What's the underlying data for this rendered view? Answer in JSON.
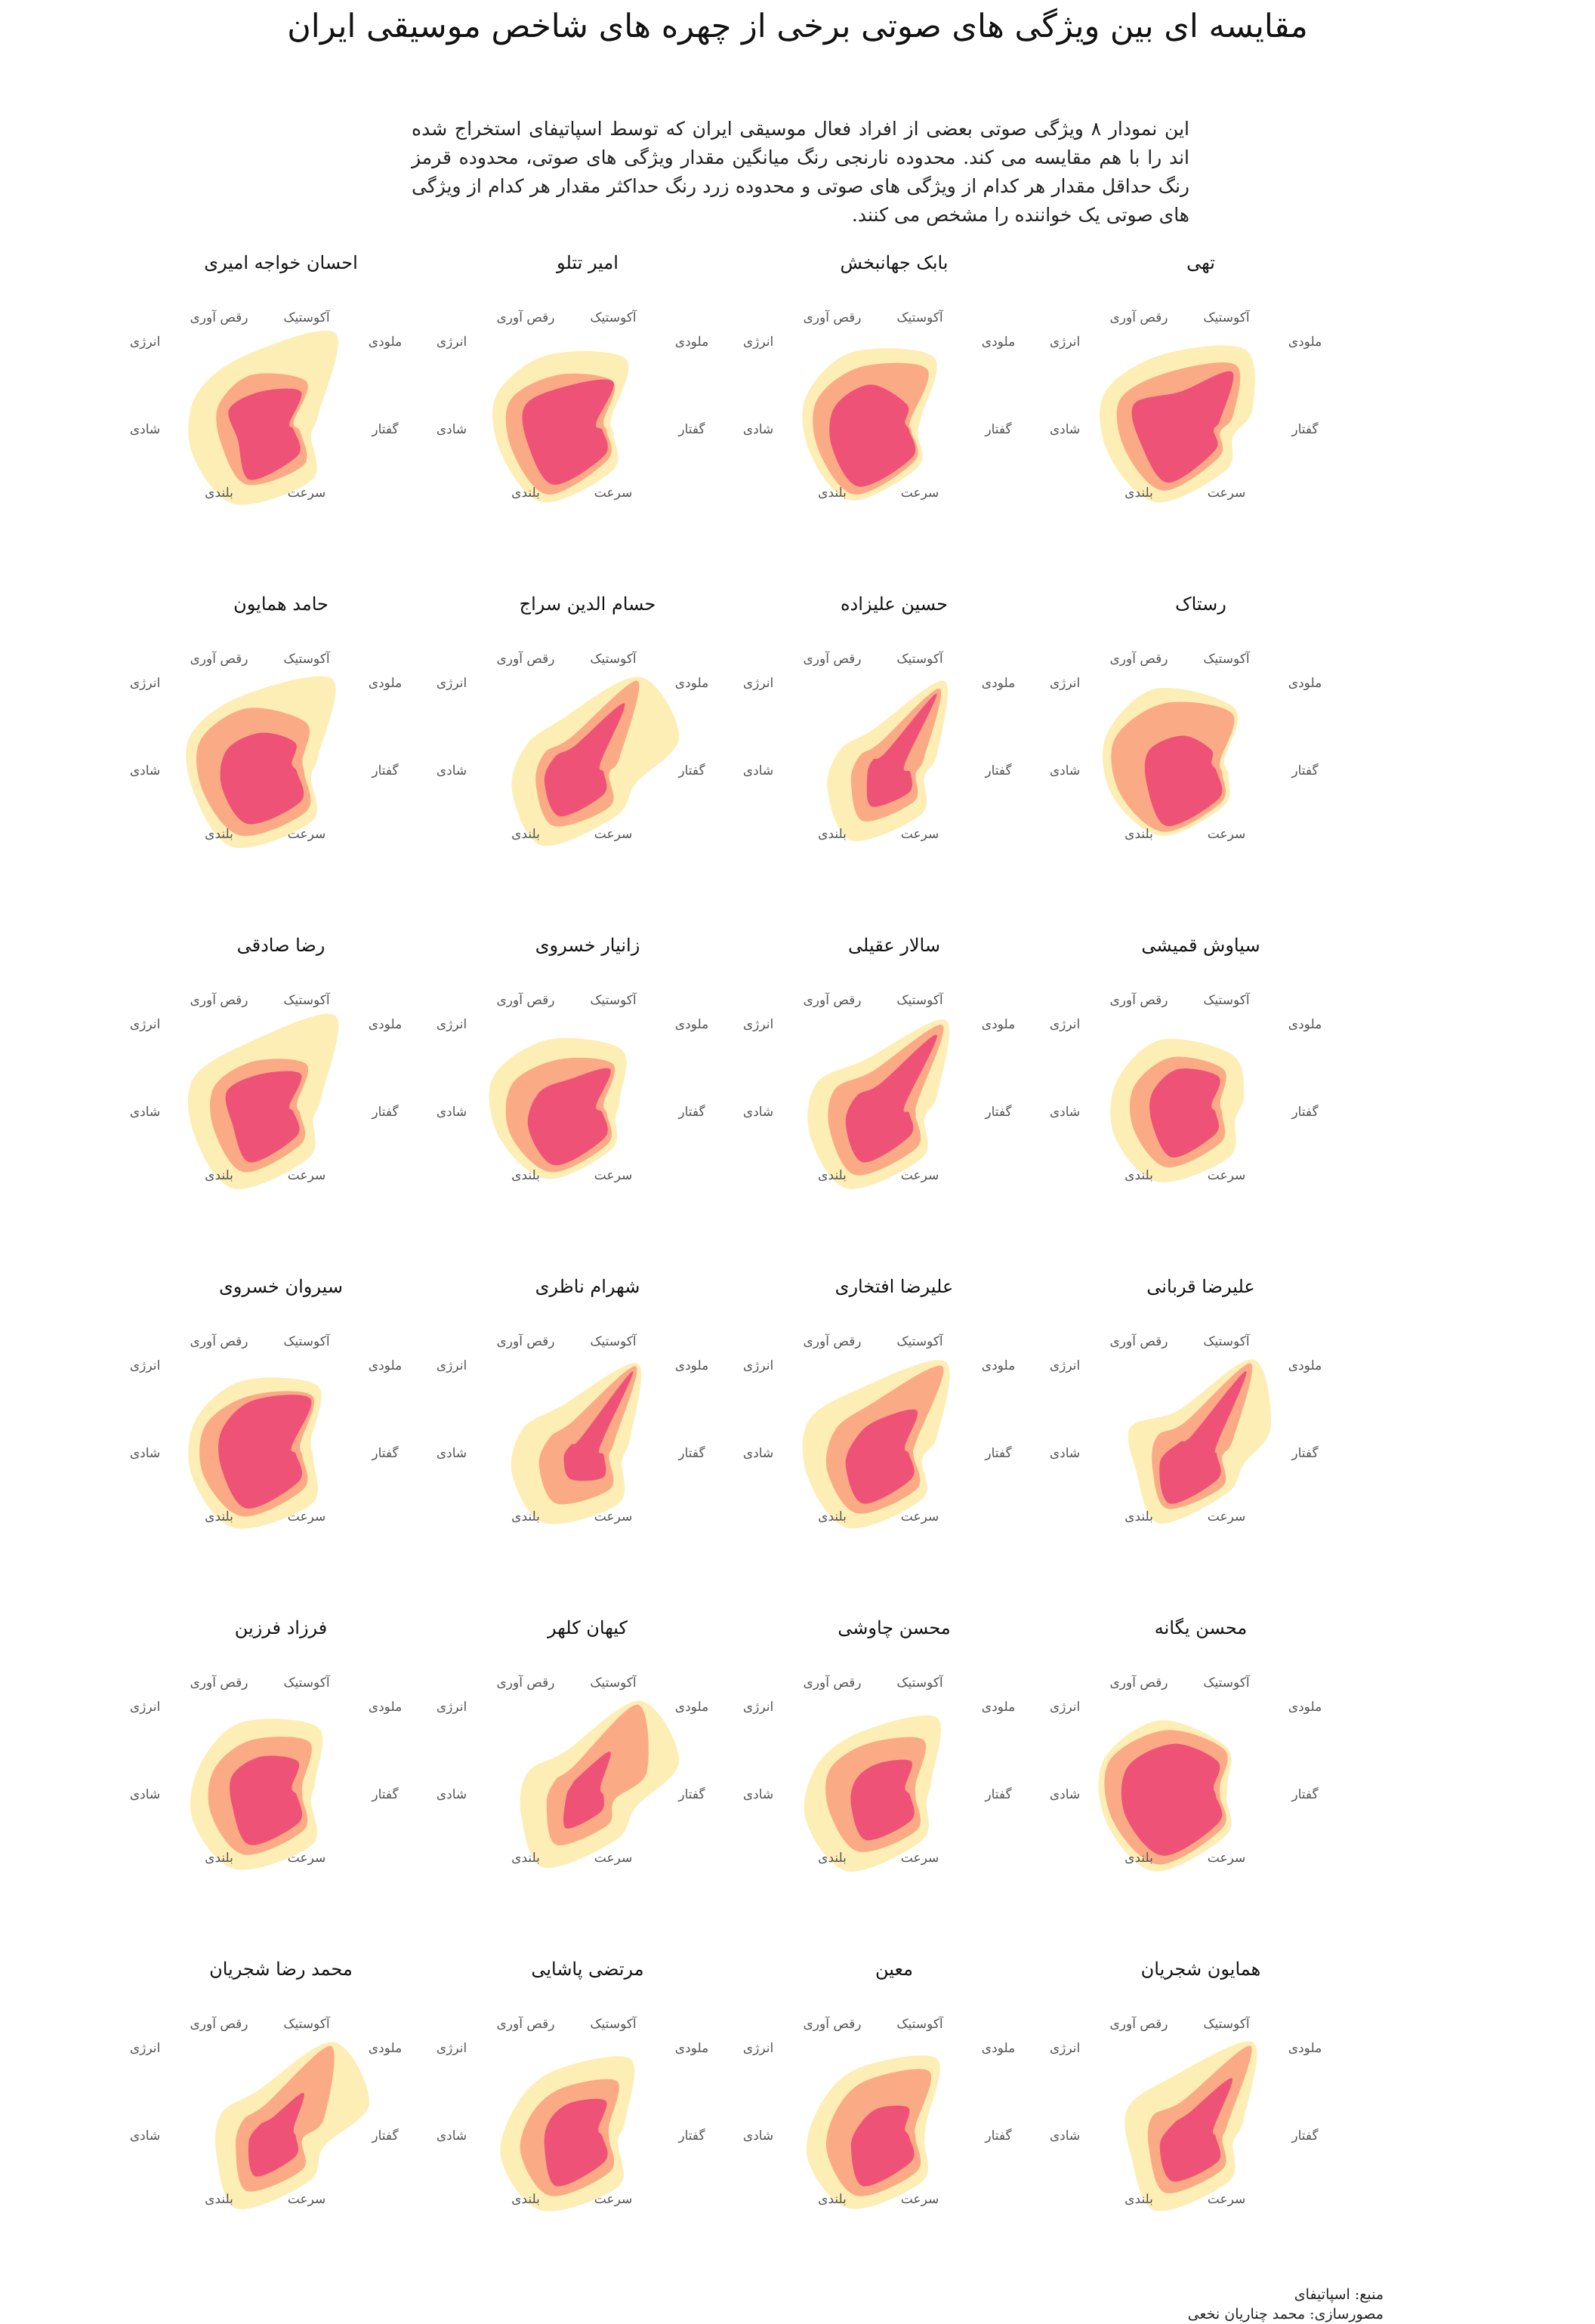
{
  "title": "مقایسه ای بین ویژگی های صوتی برخی از  چهره های شاخص موسیقی ایران",
  "description": "این نمودار ۸ ویژگی صوتی بعضی از افراد فعال موسیقی ایران که توسط اسپاتیفای استخراج شده اند را با هم مقایسه می کند. محدوده نارنجی رنگ میانگین مقدار ویژگی های صوتی، محدوده قرمز رنگ حداقل مقدار هر کدام از ویژگی های صوتی و محدوده زرد رنگ حداکثر مقدار هر کدام از ویژگی های صوتی یک خواننده را مشخص می کنند.",
  "footer": {
    "source": "منبع: اسپاتیفای",
    "credit": "مصورسازی: محمد چناریان نخعی"
  },
  "colors": {
    "max": "#fdeeb6",
    "mean": "#fbaa86",
    "min": "#ee5276"
  },
  "chart_data": {
    "type": "radar",
    "axes": [
      "آکوستیک",
      "ملودی",
      "گفتار",
      "سرعت",
      "بلندی",
      "شادی",
      "انرژی",
      "رقص آوری"
    ],
    "layers": [
      "max",
      "mean",
      "min"
    ],
    "range": [
      0,
      1
    ],
    "artists": [
      {
        "name": "تهی",
        "max": [
          0.78,
          0.48,
          0.3,
          0.45,
          0.78,
          0.85,
          0.9,
          0.72
        ],
        "mean": [
          0.62,
          0.3,
          0.18,
          0.32,
          0.66,
          0.7,
          0.75,
          0.55
        ],
        "min": [
          0.55,
          0.18,
          0.12,
          0.25,
          0.58,
          0.55,
          0.62,
          0.35
        ]
      },
      {
        "name": "بابک جهانبخش",
        "max": [
          0.7,
          0.25,
          0.22,
          0.42,
          0.76,
          0.78,
          0.82,
          0.75
        ],
        "mean": [
          0.58,
          0.15,
          0.16,
          0.36,
          0.7,
          0.7,
          0.72,
          0.6
        ],
        "min": [
          0.22,
          0.1,
          0.14,
          0.32,
          0.62,
          0.58,
          0.55,
          0.42
        ]
      },
      {
        "name": "امیر تتلو",
        "max": [
          0.68,
          0.22,
          0.24,
          0.45,
          0.78,
          0.8,
          0.85,
          0.72
        ],
        "mean": [
          0.45,
          0.15,
          0.18,
          0.35,
          0.7,
          0.7,
          0.72,
          0.52
        ],
        "min": [
          0.45,
          0.08,
          0.14,
          0.3,
          0.6,
          0.55,
          0.58,
          0.4
        ]
      },
      {
        "name": "احسان خواجه امیری",
        "max": [
          0.95,
          0.35,
          0.28,
          0.55,
          0.8,
          0.82,
          0.8,
          0.7
        ],
        "mean": [
          0.45,
          0.12,
          0.18,
          0.4,
          0.6,
          0.55,
          0.58,
          0.52
        ],
        "min": [
          0.35,
          0.08,
          0.12,
          0.3,
          0.55,
          0.4,
          0.48,
          0.35
        ]
      },
      {
        "name": "رستاک",
        "max": [
          0.6,
          0.22,
          0.26,
          0.4,
          0.7,
          0.82,
          0.88,
          0.8
        ],
        "mean": [
          0.55,
          0.18,
          0.2,
          0.36,
          0.66,
          0.75,
          0.8,
          0.65
        ],
        "min": [
          0.18,
          0.1,
          0.15,
          0.32,
          0.6,
          0.5,
          0.48,
          0.32
        ]
      },
      {
        "name": "حسین علیزاده",
        "max": [
          0.88,
          0.4,
          0.28,
          0.48,
          0.75,
          0.62,
          0.5,
          0.38
        ],
        "mean": [
          0.8,
          0.28,
          0.2,
          0.35,
          0.55,
          0.4,
          0.32,
          0.25
        ],
        "min": [
          0.75,
          0.1,
          0.15,
          0.26,
          0.4,
          0.25,
          0.2,
          0.15
        ]
      },
      {
        "name": "حسام الدین سراج",
        "max": [
          0.92,
          0.85,
          0.45,
          0.5,
          0.8,
          0.7,
          0.58,
          0.48
        ],
        "mean": [
          0.88,
          0.3,
          0.2,
          0.4,
          0.6,
          0.48,
          0.4,
          0.3
        ],
        "min": [
          0.65,
          0.12,
          0.15,
          0.28,
          0.5,
          0.4,
          0.3,
          0.22
        ]
      },
      {
        "name": "حامد همایون",
        "max": [
          0.9,
          0.35,
          0.28,
          0.55,
          0.82,
          0.8,
          0.85,
          0.72
        ],
        "mean": [
          0.45,
          0.2,
          0.22,
          0.45,
          0.7,
          0.72,
          0.75,
          0.6
        ],
        "min": [
          0.25,
          0.1,
          0.15,
          0.35,
          0.58,
          0.55,
          0.5,
          0.35
        ]
      },
      {
        "name": "سیاوش قمیشی",
        "max": [
          0.55,
          0.4,
          0.32,
          0.5,
          0.75,
          0.8,
          0.78,
          0.7
        ],
        "mean": [
          0.4,
          0.18,
          0.2,
          0.35,
          0.6,
          0.62,
          0.62,
          0.52
        ],
        "min": [
          0.32,
          0.1,
          0.14,
          0.26,
          0.5,
          0.45,
          0.45,
          0.4
        ]
      },
      {
        "name": "سالار عقیلی",
        "max": [
          0.9,
          0.4,
          0.28,
          0.5,
          0.82,
          0.78,
          0.72,
          0.5
        ],
        "mean": [
          0.85,
          0.22,
          0.2,
          0.4,
          0.68,
          0.6,
          0.55,
          0.38
        ],
        "min": [
          0.75,
          0.1,
          0.14,
          0.28,
          0.55,
          0.45,
          0.35,
          0.25
        ]
      },
      {
        "name": "زانیار خسروی",
        "max": [
          0.6,
          0.3,
          0.26,
          0.42,
          0.72,
          0.82,
          0.88,
          0.7
        ],
        "mean": [
          0.45,
          0.15,
          0.18,
          0.36,
          0.65,
          0.72,
          0.7,
          0.5
        ],
        "min": [
          0.4,
          0.08,
          0.14,
          0.3,
          0.58,
          0.55,
          0.45,
          0.3
        ]
      },
      {
        "name": "رضا صادقی",
        "max": [
          0.95,
          0.38,
          0.3,
          0.5,
          0.82,
          0.8,
          0.82,
          0.65
        ],
        "mean": [
          0.45,
          0.15,
          0.18,
          0.36,
          0.65,
          0.62,
          0.62,
          0.48
        ],
        "min": [
          0.35,
          0.08,
          0.12,
          0.28,
          0.55,
          0.45,
          0.5,
          0.35
        ]
      },
      {
        "name": "علیرضا قربانی",
        "max": [
          0.92,
          0.65,
          0.4,
          0.45,
          0.75,
          0.6,
          0.65,
          0.4
        ],
        "mean": [
          0.88,
          0.3,
          0.2,
          0.38,
          0.6,
          0.45,
          0.4,
          0.28
        ],
        "min": [
          0.8,
          0.15,
          0.15,
          0.3,
          0.55,
          0.38,
          0.2,
          0.15
        ]
      },
      {
        "name": "علیرضا افتخاری",
        "max": [
          0.9,
          0.4,
          0.26,
          0.5,
          0.8,
          0.8,
          0.8,
          0.62
        ],
        "mean": [
          0.85,
          0.2,
          0.18,
          0.4,
          0.65,
          0.62,
          0.55,
          0.45
        ],
        "min": [
          0.4,
          0.1,
          0.14,
          0.3,
          0.55,
          0.45,
          0.35,
          0.3
        ]
      },
      {
        "name": "شهرام ناظری",
        "max": [
          0.88,
          0.4,
          0.32,
          0.55,
          0.75,
          0.7,
          0.6,
          0.45
        ],
        "mean": [
          0.85,
          0.25,
          0.2,
          0.4,
          0.55,
          0.45,
          0.35,
          0.28
        ],
        "min": [
          0.8,
          0.12,
          0.15,
          0.28,
          0.3,
          0.22,
          0.15,
          0.12
        ]
      },
      {
        "name": "سیروان خسروی",
        "max": [
          0.65,
          0.28,
          0.3,
          0.55,
          0.8,
          0.82,
          0.8,
          0.7
        ],
        "mean": [
          0.55,
          0.18,
          0.2,
          0.4,
          0.68,
          0.72,
          0.7,
          0.55
        ],
        "min": [
          0.52,
          0.1,
          0.14,
          0.32,
          0.6,
          0.55,
          0.55,
          0.5
        ]
      },
      {
        "name": "محسن یگانه",
        "max": [
          0.45,
          0.25,
          0.24,
          0.45,
          0.82,
          0.88,
          0.9,
          0.72
        ],
        "mean": [
          0.42,
          0.18,
          0.18,
          0.38,
          0.75,
          0.82,
          0.85,
          0.62
        ],
        "min": [
          0.3,
          0.12,
          0.14,
          0.32,
          0.66,
          0.7,
          0.68,
          0.48
        ]
      },
      {
        "name": "محسن چاوشی",
        "max": [
          0.75,
          0.35,
          0.3,
          0.5,
          0.82,
          0.82,
          0.72,
          0.6
        ],
        "mean": [
          0.52,
          0.2,
          0.2,
          0.4,
          0.62,
          0.6,
          0.6,
          0.48
        ],
        "min": [
          0.3,
          0.1,
          0.15,
          0.3,
          0.5,
          0.4,
          0.35,
          0.28
        ]
      },
      {
        "name": "کیهان کلهر",
        "max": [
          0.92,
          0.85,
          0.45,
          0.5,
          0.78,
          0.62,
          0.55,
          0.4
        ],
        "mean": [
          0.88,
          0.55,
          0.25,
          0.35,
          0.55,
          0.38,
          0.3,
          0.25
        ],
        "min": [
          0.4,
          0.12,
          0.15,
          0.22,
          0.38,
          0.2,
          0.15,
          0.15
        ]
      },
      {
        "name": "فرزاد فرزین",
        "max": [
          0.65,
          0.32,
          0.28,
          0.55,
          0.8,
          0.82,
          0.75,
          0.7
        ],
        "mean": [
          0.5,
          0.2,
          0.2,
          0.4,
          0.65,
          0.65,
          0.62,
          0.52
        ],
        "min": [
          0.3,
          0.1,
          0.15,
          0.32,
          0.55,
          0.45,
          0.45,
          0.35
        ]
      },
      {
        "name": "همایون شجریان",
        "max": [
          0.92,
          0.4,
          0.3,
          0.5,
          0.8,
          0.65,
          0.68,
          0.55
        ],
        "mean": [
          0.88,
          0.25,
          0.2,
          0.38,
          0.62,
          0.48,
          0.45,
          0.32
        ],
        "min": [
          0.55,
          0.12,
          0.14,
          0.3,
          0.5,
          0.38,
          0.25,
          0.2
        ]
      },
      {
        "name": "معین",
        "max": [
          0.75,
          0.3,
          0.28,
          0.5,
          0.78,
          0.8,
          0.7,
          0.65
        ],
        "mean": [
          0.62,
          0.2,
          0.2,
          0.4,
          0.65,
          0.62,
          0.55,
          0.52
        ],
        "min": [
          0.25,
          0.1,
          0.14,
          0.3,
          0.55,
          0.4,
          0.3,
          0.25
        ]
      },
      {
        "name": "مرتضی پاشایی",
        "max": [
          0.75,
          0.35,
          0.28,
          0.55,
          0.8,
          0.8,
          0.68,
          0.62
        ],
        "mean": [
          0.52,
          0.2,
          0.2,
          0.4,
          0.65,
          0.62,
          0.52,
          0.45
        ],
        "min": [
          0.32,
          0.1,
          0.14,
          0.3,
          0.55,
          0.4,
          0.35,
          0.3
        ]
      },
      {
        "name": "محمد رضا شجریان",
        "max": [
          0.92,
          0.82,
          0.4,
          0.5,
          0.78,
          0.6,
          0.55,
          0.42
        ],
        "mean": [
          0.88,
          0.4,
          0.2,
          0.38,
          0.6,
          0.42,
          0.35,
          0.28
        ],
        "min": [
          0.4,
          0.12,
          0.14,
          0.25,
          0.45,
          0.3,
          0.2,
          0.15
        ]
      }
    ]
  }
}
